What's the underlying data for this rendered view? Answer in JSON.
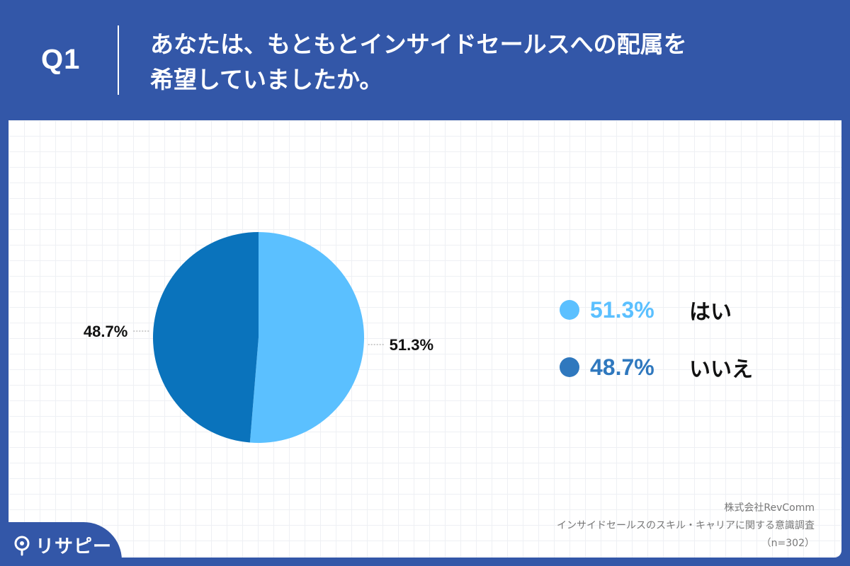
{
  "header": {
    "question_number": "Q1",
    "question_line1": "あなたは、もともとインサイドセールスへの配属を",
    "question_line2": "希望していましたか。"
  },
  "chart_data": {
    "type": "pie",
    "title": "あなたは、もともとインサイドセールスへの配属を希望していましたか。",
    "categories": [
      "はい",
      "いいえ"
    ],
    "values": [
      51.3,
      48.7
    ],
    "unit": "%",
    "slice_labels": [
      "51.3%",
      "48.7%"
    ],
    "colors": [
      "#5BC0FF",
      "#0A73BC"
    ],
    "legend_position": "right"
  },
  "legend": {
    "items": [
      {
        "value": "51.3%",
        "label": "はい",
        "color": "#5BC0FF"
      },
      {
        "value": "48.7%",
        "label": "いいえ",
        "color": "#2F78BE"
      }
    ]
  },
  "footer": {
    "company": "株式会社RevComm",
    "survey": "インサイドセールスのスキル・キャリアに関する意識調査",
    "sample": "（n=302）"
  },
  "logo": {
    "text": "リサピー"
  }
}
